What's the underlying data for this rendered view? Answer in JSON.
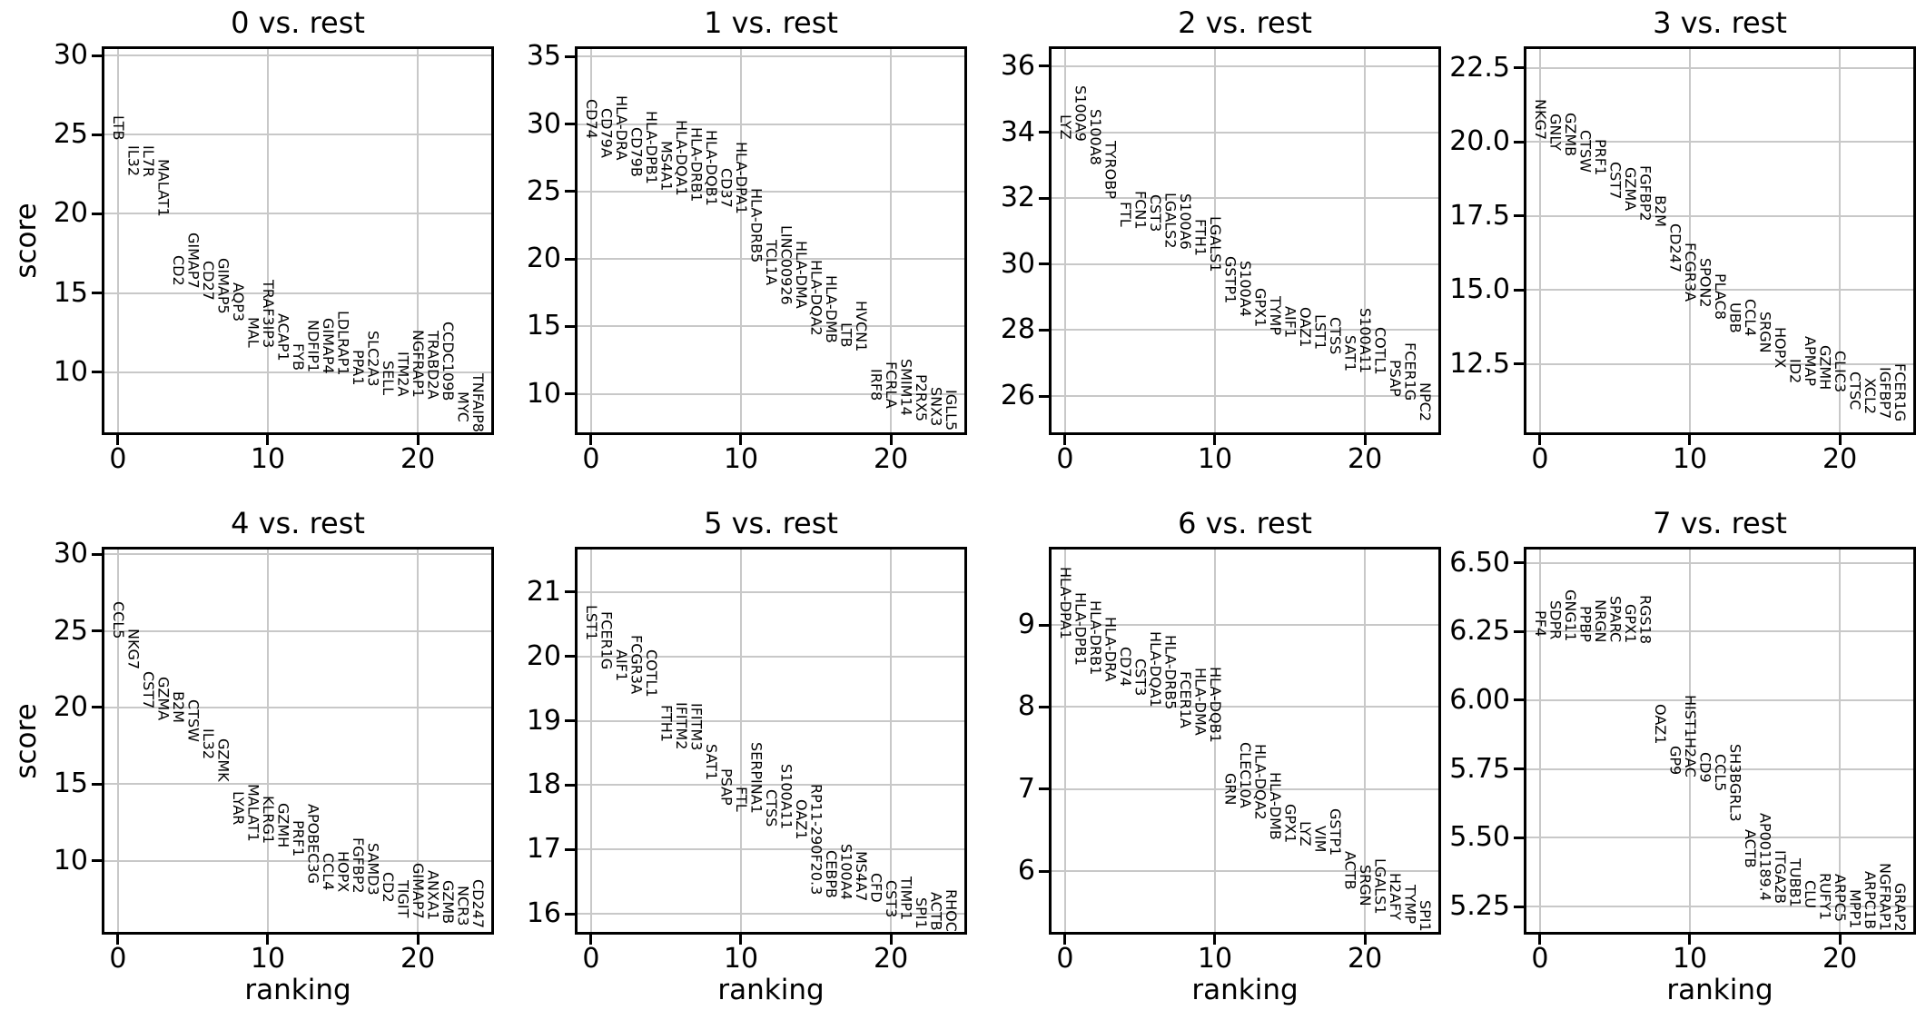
{
  "figure": {
    "xlabel": "ranking",
    "ylabel": "score"
  },
  "chart_data": {
    "type": "scatter",
    "description": "Ranked gene score panels, one per group vs. rest; each data point is a gene name drawn as vertical text at (ranking, score).",
    "xlabel": "ranking",
    "ylabel": "score",
    "xlim": [
      -0.9,
      24.9
    ],
    "xticks": [
      0,
      10,
      20
    ],
    "xtick_labels": [
      "0",
      "10",
      "20"
    ],
    "grid": true,
    "panels": [
      {
        "title": "0 vs. rest",
        "ylim": [
          6.19,
          30.42
        ],
        "yticks": [
          10,
          15,
          20,
          25,
          30
        ],
        "ytick_labels": [
          "10",
          "15",
          "20",
          "25",
          "30"
        ],
        "genes": [
          [
            "LTB",
            24.65
          ],
          [
            "IL32",
            22.37
          ],
          [
            "IL7R",
            22.3
          ],
          [
            "MALAT1",
            19.8
          ],
          [
            "CD2",
            15.44
          ],
          [
            "GIMAP7",
            15.3
          ],
          [
            "CD27",
            14.5
          ],
          [
            "GIMAP5",
            13.65
          ],
          [
            "AQP3",
            13.2
          ],
          [
            "MAL",
            11.54
          ],
          [
            "TRAF3IP3",
            11.5
          ],
          [
            "ACAP1",
            10.67
          ],
          [
            "FYB",
            10.1
          ],
          [
            "NDFIP1",
            10.0
          ],
          [
            "GIMAP4",
            9.9
          ],
          [
            "LDLRAP1",
            9.8
          ],
          [
            "PPA1",
            9.13
          ],
          [
            "SLC2A3",
            9.1
          ],
          [
            "SELL",
            8.56
          ],
          [
            "ITM2A",
            8.46
          ],
          [
            "NGFRAP1",
            8.37
          ],
          [
            "TRABD2A",
            8.27
          ],
          [
            "CCDC109B",
            8.17
          ],
          [
            "MYC",
            6.83
          ],
          [
            "TNFAIP8",
            6.21
          ]
        ]
      },
      {
        "title": "1 vs. rest",
        "ylim": [
          7.15,
          35.56
        ],
        "yticks": [
          10,
          15,
          20,
          25,
          30,
          35
        ],
        "ytick_labels": [
          "10",
          "15",
          "20",
          "25",
          "30",
          "35"
        ],
        "genes": [
          [
            "CD74",
            28.93
          ],
          [
            "CD79A",
            27.47
          ],
          [
            "HLA-DRA",
            27.3
          ],
          [
            "CD79B",
            26.06
          ],
          [
            "HLA-DPB1",
            25.56
          ],
          [
            "MS4A1",
            25.07
          ],
          [
            "HLA-DQA1",
            24.66
          ],
          [
            "HLA-DRB1",
            24.21
          ],
          [
            "HLA-DQB1",
            23.94
          ],
          [
            "CD37",
            23.81
          ],
          [
            "HLA-DPA1",
            23.31
          ],
          [
            "HLA-DRB5",
            19.72
          ],
          [
            "TCL1A",
            18.03
          ],
          [
            "LINC00926",
            16.57
          ],
          [
            "HLA-DMA",
            16.35
          ],
          [
            "HLA-DQA2",
            14.33
          ],
          [
            "HLA-DMB",
            13.76
          ],
          [
            "LTB",
            13.43
          ],
          [
            "HVCN1",
            13.09
          ],
          [
            "IRF8",
            9.49
          ],
          [
            "FCRLA",
            8.93
          ],
          [
            "SMIM14",
            8.37
          ],
          [
            "P2RX5",
            7.92
          ],
          [
            "SNX3",
            7.58
          ],
          [
            "IGLL5",
            7.25
          ]
        ]
      },
      {
        "title": "2 vs. rest",
        "ylim": [
          24.9,
          36.52
        ],
        "yticks": [
          26,
          28,
          30,
          32,
          34,
          36
        ],
        "ytick_labels": [
          "26",
          "28",
          "30",
          "32",
          "34",
          "36"
        ],
        "genes": [
          [
            "LYZ",
            33.79
          ],
          [
            "S100A9",
            33.72
          ],
          [
            "S100A8",
            33.0
          ],
          [
            "TYROBP",
            31.97
          ],
          [
            "FTL",
            31.13
          ],
          [
            "FCN1",
            31.04
          ],
          [
            "CST3",
            30.98
          ],
          [
            "LGALS2",
            30.48
          ],
          [
            "S100A6",
            30.43
          ],
          [
            "FTH1",
            30.25
          ],
          [
            "LGALS1",
            29.75
          ],
          [
            "GSTP1",
            28.8
          ],
          [
            "S100A4",
            28.41
          ],
          [
            "GPX1",
            28.09
          ],
          [
            "TYMP",
            27.84
          ],
          [
            "AIF1",
            27.76
          ],
          [
            "OAZ1",
            27.49
          ],
          [
            "LST1",
            27.4
          ],
          [
            "CTSS",
            27.26
          ],
          [
            "SAT1",
            26.75
          ],
          [
            "S100A11",
            26.69
          ],
          [
            "COTL1",
            26.64
          ],
          [
            "PSAP",
            25.98
          ],
          [
            "FCER1G",
            25.86
          ],
          [
            "NPC2",
            25.22
          ]
        ]
      },
      {
        "title": "3 vs. rest",
        "ylim": [
          10.2,
          23.14
        ],
        "yticks": [
          12.5,
          15.0,
          17.5,
          20.0,
          22.5
        ],
        "ytick_labels": [
          "12.5",
          "15.0",
          "17.5",
          "20.0",
          "22.5"
        ],
        "genes": [
          [
            "NKG7",
            20.08
          ],
          [
            "GNLY",
            19.71
          ],
          [
            "GZMB",
            19.51
          ],
          [
            "CTSW",
            18.98
          ],
          [
            "PRF1",
            18.86
          ],
          [
            "CST7",
            18.06
          ],
          [
            "GZMA",
            17.67
          ],
          [
            "FGFBP2",
            17.33
          ],
          [
            "B2M",
            17.14
          ],
          [
            "CD247",
            15.59
          ],
          [
            "FCGR3A",
            14.61
          ],
          [
            "SPON2",
            14.41
          ],
          [
            "PLAC8",
            14.0
          ],
          [
            "UBB",
            13.55
          ],
          [
            "CCL4",
            13.45
          ],
          [
            "SRGN",
            12.88
          ],
          [
            "HOPX",
            12.37
          ],
          [
            "ID2",
            11.84
          ],
          [
            "APMAP",
            11.76
          ],
          [
            "GZMH",
            11.65
          ],
          [
            "CLIC3",
            11.55
          ],
          [
            "CTSC",
            10.97
          ],
          [
            "XCL2",
            10.8
          ],
          [
            "IGFBP7",
            10.66
          ],
          [
            "FCER1G",
            10.56
          ]
        ]
      },
      {
        "title": "4 vs. rest",
        "ylim": [
          5.37,
          30.3
        ],
        "yticks": [
          10,
          15,
          20,
          25,
          30
        ],
        "ytick_labels": [
          "10",
          "15",
          "20",
          "25",
          "30"
        ],
        "genes": [
          [
            "CCL5",
            24.48
          ],
          [
            "NKG7",
            22.47
          ],
          [
            "CST7",
            19.91
          ],
          [
            "GZMA",
            19.16
          ],
          [
            "B2M",
            19.0
          ],
          [
            "CTSW",
            17.74
          ],
          [
            "IL32",
            16.6
          ],
          [
            "GZMK",
            15.18
          ],
          [
            "LYAR",
            12.36
          ],
          [
            "MALAT1",
            11.24
          ],
          [
            "KLRG1",
            11.12
          ],
          [
            "GZMH",
            10.85
          ],
          [
            "PRF1",
            10.26
          ],
          [
            "APOBEC3G",
            8.48
          ],
          [
            "CCL4",
            8.09
          ],
          [
            "HOPX",
            7.97
          ],
          [
            "FGFBP2",
            7.89
          ],
          [
            "SAMD3",
            7.77
          ],
          [
            "CD2",
            7.3
          ],
          [
            "TIGIT",
            6.31
          ],
          [
            "GIMAP7",
            6.21
          ],
          [
            "ANXA1",
            6.12
          ],
          [
            "GZMB",
            5.92
          ],
          [
            "NCR3",
            5.76
          ],
          [
            "CD247",
            5.6
          ]
        ]
      },
      {
        "title": "5 vs. rest",
        "ylim": [
          15.72,
          21.66
        ],
        "yticks": [
          16,
          17,
          18,
          19,
          20,
          21
        ],
        "ytick_labels": [
          "16",
          "17",
          "18",
          "19",
          "20",
          "21"
        ],
        "genes": [
          [
            "LST1",
            20.25
          ],
          [
            "FCER1G",
            19.79
          ],
          [
            "AIF1",
            19.61
          ],
          [
            "FCGR3A",
            19.42
          ],
          [
            "COTL1",
            19.37
          ],
          [
            "FTH1",
            18.67
          ],
          [
            "IFITM2",
            18.55
          ],
          [
            "IFITM3",
            18.54
          ],
          [
            "SAT1",
            18.08
          ],
          [
            "PSAP",
            17.68
          ],
          [
            "FTL",
            17.59
          ],
          [
            "SERPINA1",
            17.56
          ],
          [
            "CTSS",
            17.35
          ],
          [
            "S100A11",
            17.31
          ],
          [
            "OAZ1",
            17.16
          ],
          [
            "RP11-290F20.3",
            16.29
          ],
          [
            "CEBPB",
            16.25
          ],
          [
            "S100A4",
            16.22
          ],
          [
            "MS4A7",
            16.2
          ],
          [
            "CFD",
            16.18
          ],
          [
            "CST3",
            15.94
          ],
          [
            "TIMP1",
            15.9
          ],
          [
            "SPI1",
            15.76
          ],
          [
            "ACTB",
            15.74
          ],
          [
            "RHOC",
            15.72
          ]
        ]
      },
      {
        "title": "6 vs. rest",
        "ylim": [
          5.26,
          9.92
        ],
        "yticks": [
          6,
          7,
          8,
          9
        ],
        "ytick_labels": [
          "6",
          "7",
          "8",
          "9"
        ],
        "genes": [
          [
            "HLA-DPA1",
            8.83
          ],
          [
            "HLA-DPB1",
            8.51
          ],
          [
            "HLA-DRB1",
            8.39
          ],
          [
            "HLA-DRA",
            8.31
          ],
          [
            "CD74",
            8.25
          ],
          [
            "CST3",
            8.13
          ],
          [
            "HLA-DQA1",
            8.0
          ],
          [
            "HLA-DRB5",
            7.97
          ],
          [
            "FCER1A",
            7.74
          ],
          [
            "HLA-DMA",
            7.65
          ],
          [
            "HLA-DQB1",
            7.56
          ],
          [
            "GRN",
            6.8
          ],
          [
            "CLEC10A",
            6.77
          ],
          [
            "HLA-DQA2",
            6.63
          ],
          [
            "HLA-DMB",
            6.38
          ],
          [
            "GPX1",
            6.34
          ],
          [
            "LYZ",
            6.31
          ],
          [
            "VIM",
            6.23
          ],
          [
            "GSTP1",
            6.19
          ],
          [
            "ACTB",
            5.77
          ],
          [
            "SRGN",
            5.57
          ],
          [
            "LGALS1",
            5.48
          ],
          [
            "H2AFY",
            5.4
          ],
          [
            "TYMP",
            5.36
          ],
          [
            "SPI1",
            5.26
          ]
        ]
      },
      {
        "title": "7 vs. rest",
        "ylim": [
          5.158,
          6.548
        ],
        "yticks": [
          5.25,
          5.5,
          5.75,
          6.0,
          6.25,
          6.5
        ],
        "ytick_labels": [
          "5.25",
          "5.50",
          "5.75",
          "6.00",
          "6.25",
          "6.50"
        ],
        "genes": [
          [
            "PF4",
            6.23
          ],
          [
            "SDPR",
            6.22
          ],
          [
            "GNG11",
            6.215
          ],
          [
            "PPBP",
            6.213
          ],
          [
            "NRGN",
            6.211
          ],
          [
            "SPARC",
            6.21
          ],
          [
            "GPX1",
            6.208
          ],
          [
            "RGS18",
            6.205
          ],
          [
            "OAZ1",
            5.84
          ],
          [
            "GP9",
            5.73
          ],
          [
            "HIST1H2AC",
            5.72
          ],
          [
            "CD9",
            5.7
          ],
          [
            "CCL5",
            5.67
          ],
          [
            "SH3BGRL3",
            5.56
          ],
          [
            "ACTB",
            5.39
          ],
          [
            "AP001189.4",
            5.27
          ],
          [
            "ITGA2B",
            5.26
          ],
          [
            "TUBB1",
            5.25
          ],
          [
            "CLU",
            5.245
          ],
          [
            "RUFY1",
            5.2
          ],
          [
            "ARPC5",
            5.195
          ],
          [
            "MPP1",
            5.17
          ],
          [
            "ARPC1B",
            5.167
          ],
          [
            "NGFRAP1",
            5.163
          ],
          [
            "GRAP2",
            5.158
          ]
        ]
      }
    ]
  }
}
